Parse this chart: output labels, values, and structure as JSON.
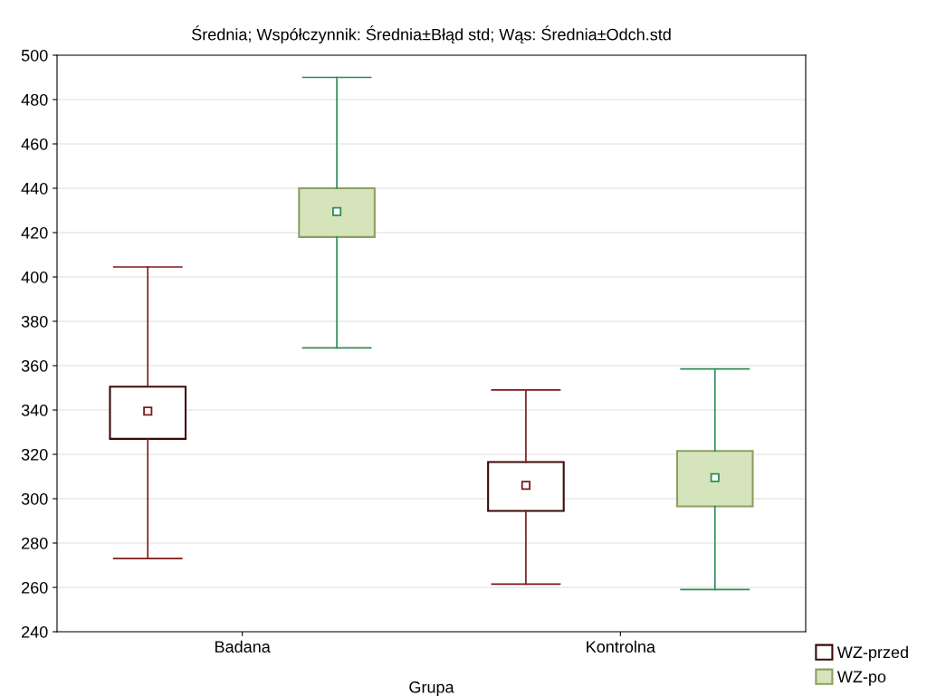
{
  "chart_data": {
    "type": "box",
    "title": "Średnia; Współczynnik: Średnia±Błąd std; Wąs: Średnia±Odch.std",
    "xlabel": "Grupa",
    "categories": [
      "Badana",
      "Kontrolna"
    ],
    "series": [
      {
        "name": "WZ-przed",
        "color": "#ffffff",
        "boxes": [
          {
            "low": 273,
            "q1": 327,
            "median": 339.5,
            "q3": 350.5,
            "high": 404.5
          },
          {
            "low": 261.5,
            "q1": 294.5,
            "median": 306,
            "q3": 316.5,
            "high": 349
          }
        ]
      },
      {
        "name": "WZ-po",
        "color": "#d6e4bc",
        "boxes": [
          {
            "low": 368,
            "q1": 418,
            "median": 429.5,
            "q3": 440,
            "high": 490
          },
          {
            "low": 259,
            "q1": 296.5,
            "median": 309.5,
            "q3": 321.5,
            "high": 358.5
          }
        ]
      }
    ],
    "ylim": [
      240,
      500
    ],
    "yticks": [
      240,
      260,
      280,
      300,
      320,
      340,
      360,
      380,
      400,
      420,
      440,
      460,
      480,
      500
    ],
    "grid": "y",
    "legend": "bottom right",
    "marker": "square"
  }
}
